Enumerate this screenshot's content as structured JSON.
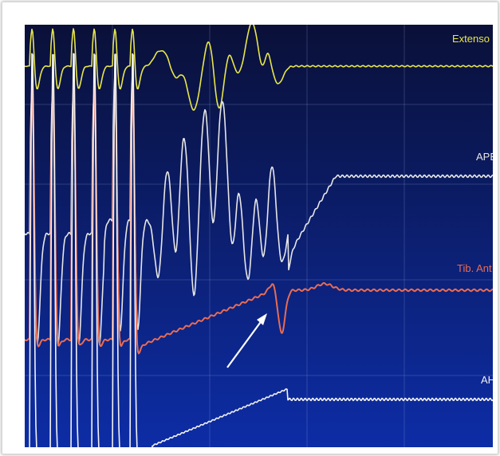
{
  "chart_data": {
    "type": "line",
    "title": "",
    "xlabel": "",
    "ylabel": "",
    "grid": true,
    "background": [
      "#0a1038",
      "#0d2da6"
    ],
    "grid_color": "#8aa0d8",
    "series": [
      {
        "name": "Extenso",
        "label": "Extenso",
        "color": "#e8e64a"
      },
      {
        "name": "APB",
        "label": "APB",
        "color": "#e6e6e6"
      },
      {
        "name": "Tib. Ant",
        "label": "Tib. Ant",
        "color": "#e86c54"
      },
      {
        "name": "AH",
        "label": "AH",
        "color": "#f2f2f2"
      }
    ],
    "annotations": [
      {
        "type": "arrow",
        "target": "Tib. Ant",
        "color": "#ffffff"
      }
    ]
  }
}
